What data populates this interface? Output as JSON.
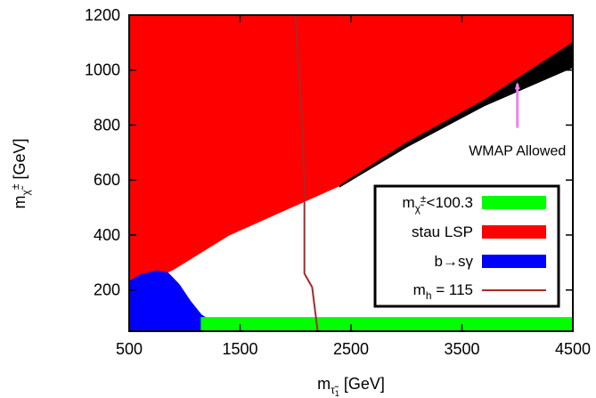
{
  "chart_data": {
    "type": "area",
    "xlabel": "m",
    "xlabel_sub": "τ̃",
    "xlabel_subsub": "1",
    "xlabel_unit": " [GeV]",
    "ylabel": "m",
    "ylabel_sub": "χ̃",
    "ylabel_sup": "±",
    "ylabel_unit": " [GeV]",
    "xlim": [
      500,
      4500
    ],
    "ylim": [
      50,
      1200
    ],
    "x_ticks": [
      500,
      1500,
      2500,
      3500,
      4500
    ],
    "y_ticks": [
      200,
      400,
      600,
      800,
      1000,
      1200
    ],
    "x_tick_labels": [
      "500",
      "1500",
      "2500",
      "3500",
      "4500"
    ],
    "y_tick_labels": [
      "200",
      "400",
      "600",
      "800",
      "1000",
      "1200"
    ],
    "grid": false,
    "legend_position": "bottom-right",
    "colors": {
      "chargino": "#00ff00",
      "stau": "#ff0000",
      "bsg": "#0000ff",
      "higgs": "#a52a2a",
      "wmap": "#000000",
      "arrow": "#ee82ee"
    },
    "regions": [
      {
        "name": "stau LSP",
        "color": "#ff0000",
        "points": [
          [
            500,
            1200
          ],
          [
            4500,
            1200
          ],
          [
            4500,
            1010
          ],
          [
            3700,
            880
          ],
          [
            3000,
            730
          ],
          [
            2400,
            580
          ],
          [
            1400,
            400
          ],
          [
            900,
            275
          ],
          [
            500,
            200
          ]
        ]
      },
      {
        "name": "WMAP Allowed",
        "color": "#000000",
        "points": [
          [
            2400,
            580
          ],
          [
            3000,
            735
          ],
          [
            3700,
            890
          ],
          [
            4500,
            1100
          ],
          [
            4500,
            1010
          ],
          [
            3700,
            870
          ],
          [
            3000,
            720
          ],
          [
            2400,
            575
          ]
        ]
      },
      {
        "name": "b→sγ",
        "color": "#0000ff",
        "points": [
          [
            500,
            230
          ],
          [
            600,
            255
          ],
          [
            750,
            270
          ],
          [
            850,
            262
          ],
          [
            950,
            220
          ],
          [
            1050,
            160
          ],
          [
            1150,
            110
          ],
          [
            1300,
            70
          ],
          [
            1400,
            50
          ],
          [
            500,
            50
          ]
        ]
      },
      {
        "name": "chargino",
        "label": "m",
        "label_sub": "χ̃",
        "label_sup": "±",
        "label_tail": "<100.3",
        "color": "#00ff00",
        "points": [
          [
            1150,
            100
          ],
          [
            4500,
            100
          ],
          [
            4500,
            50
          ],
          [
            1150,
            50
          ]
        ]
      }
    ],
    "contours": [
      {
        "name": "m_h = 115",
        "label": "m",
        "label_sub": "h",
        "label_tail": " = 115",
        "color": "#a52a2a",
        "points": [
          [
            2000,
            1200
          ],
          [
            2030,
            1000
          ],
          [
            2060,
            800
          ],
          [
            2080,
            600
          ],
          [
            2080,
            400
          ],
          [
            2080,
            260
          ],
          [
            2150,
            210
          ],
          [
            2200,
            50
          ]
        ]
      }
    ],
    "annotation": {
      "text": "WMAP Allowed",
      "arrow_from": [
        4000,
        790
      ],
      "arrow_to": [
        4000,
        950
      ],
      "text_at": [
        4000,
        690
      ]
    },
    "legend": [
      {
        "label": "m",
        "sub": "χ̃",
        "sup": "±",
        "tail": "<100.3",
        "color": "#00ff00",
        "kind": "box"
      },
      {
        "label": "stau LSP",
        "color": "#ff0000",
        "kind": "box"
      },
      {
        "label": "b→sγ",
        "color": "#0000ff",
        "kind": "box"
      },
      {
        "label": "m",
        "sub": "h",
        "tail": " = 115",
        "color": "#a52a2a",
        "kind": "line"
      }
    ]
  }
}
